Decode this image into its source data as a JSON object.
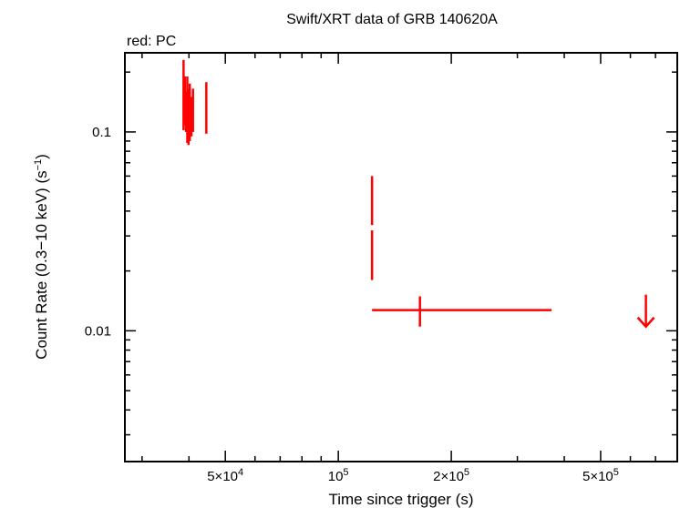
{
  "chart_data": {
    "type": "scatter",
    "title": "Swift/XRT data of GRB 140620A",
    "legend_note": "red: PC",
    "xlabel": "Time since trigger (s)",
    "ylabel_parts": [
      "Count Rate (0.3−10 keV) (s",
      "−1",
      ")"
    ],
    "x_scale": "log",
    "y_scale": "log",
    "xlim": [
      27000,
      800000
    ],
    "ylim": [
      0.0022,
      0.25
    ],
    "x_ticks": [
      {
        "value": 50000,
        "base": "5×10",
        "exp": "4"
      },
      {
        "value": 100000,
        "base": "10",
        "exp": "5"
      },
      {
        "value": 200000,
        "base": "2×10",
        "exp": "5"
      },
      {
        "value": 500000,
        "base": "5×10",
        "exp": "5"
      }
    ],
    "y_ticks": [
      {
        "value": 0.1,
        "label": "0.1"
      },
      {
        "value": 0.01,
        "label": "0.01"
      }
    ],
    "grid": false,
    "series": [
      {
        "color": "#ff0000",
        "points": [
          {
            "x": 38700,
            "y": 0.13,
            "ylo": 0.102,
            "yhi": 0.23,
            "xlo": 38550,
            "xhi": 38850
          },
          {
            "x": 39000,
            "y": 0.14,
            "ylo": 0.108,
            "yhi": 0.19,
            "xlo": 38850,
            "xhi": 39150
          },
          {
            "x": 39300,
            "y": 0.125,
            "ylo": 0.1,
            "yhi": 0.16,
            "xlo": 39150,
            "xhi": 39450
          },
          {
            "x": 39600,
            "y": 0.115,
            "ylo": 0.088,
            "yhi": 0.19,
            "xlo": 39450,
            "xhi": 39750
          },
          {
            "x": 39900,
            "y": 0.12,
            "ylo": 0.086,
            "yhi": 0.165,
            "xlo": 39750,
            "xhi": 40050
          },
          {
            "x": 40200,
            "y": 0.128,
            "ylo": 0.09,
            "yhi": 0.175,
            "xlo": 40050,
            "xhi": 40350
          },
          {
            "x": 40600,
            "y": 0.118,
            "ylo": 0.095,
            "yhi": 0.15,
            "xlo": 40400,
            "xhi": 40800
          },
          {
            "x": 41000,
            "y": 0.135,
            "ylo": 0.1,
            "yhi": 0.165,
            "xlo": 40800,
            "xhi": 41200
          },
          {
            "x": 44500,
            "y": 0.125,
            "ylo": 0.098,
            "yhi": 0.178,
            "xlo": 44300,
            "xhi": 44700
          },
          {
            "x": 123000,
            "y": 0.045,
            "ylo": 0.034,
            "yhi": 0.06,
            "xlo": 122300,
            "xhi": 123700
          },
          {
            "x": 123000,
            "y": 0.025,
            "ylo": 0.018,
            "yhi": 0.032,
            "xlo": 122300,
            "xhi": 123700
          },
          {
            "x": 165000,
            "y": 0.0127,
            "ylo": 0.0105,
            "yhi": 0.0149,
            "xlo": 123000,
            "xhi": 370000
          }
        ],
        "upper_limits": [
          {
            "x": 660000,
            "y": 0.0152,
            "arrow_to": 0.0105
          }
        ]
      }
    ]
  }
}
